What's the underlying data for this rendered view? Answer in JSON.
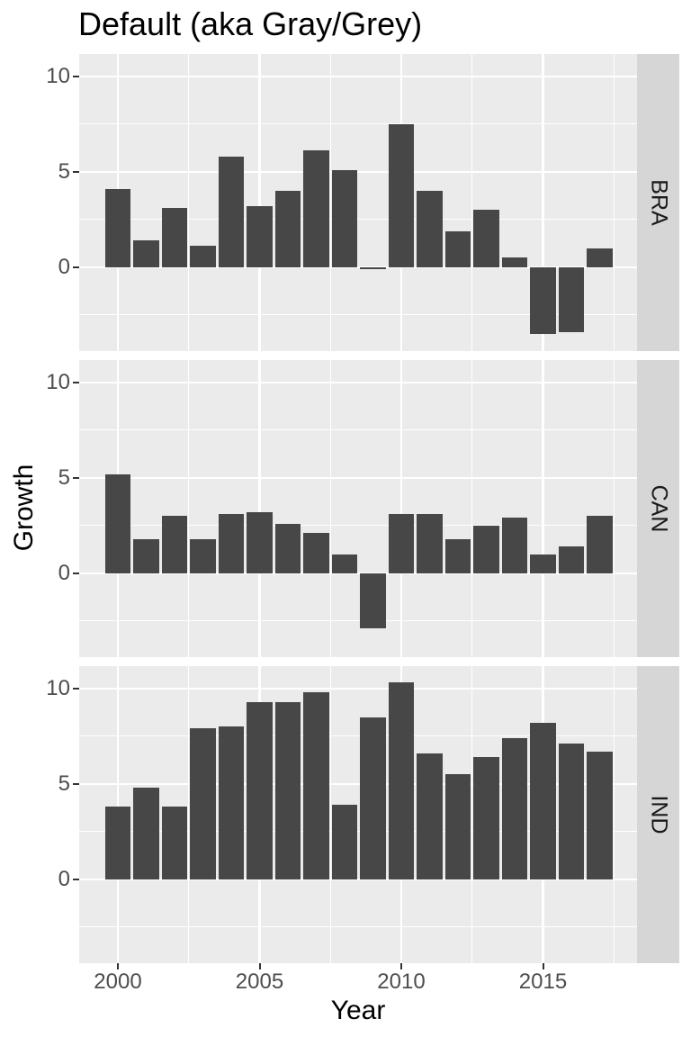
{
  "title": "Default (aka Gray/Grey)",
  "chart_data": {
    "type": "bar",
    "title": "Default (aka Gray/Grey)",
    "xlabel": "Year",
    "ylabel": "Growth",
    "facet_layout": "rows",
    "legend": "none",
    "grid": true,
    "categories": [
      2000,
      2001,
      2002,
      2003,
      2004,
      2005,
      2006,
      2007,
      2008,
      2009,
      2010,
      2011,
      2012,
      2013,
      2014,
      2015,
      2016,
      2017
    ],
    "series": [
      {
        "name": "BRA",
        "values": [
          4.1,
          1.4,
          3.1,
          1.1,
          5.8,
          3.2,
          4.0,
          6.1,
          5.1,
          -0.1,
          7.5,
          4.0,
          1.9,
          3.0,
          0.5,
          -3.5,
          -3.4,
          1.0
        ]
      },
      {
        "name": "CAN",
        "values": [
          5.2,
          1.8,
          3.0,
          1.8,
          3.1,
          3.2,
          2.6,
          2.1,
          1.0,
          -2.9,
          3.1,
          3.1,
          1.8,
          2.5,
          2.9,
          1.0,
          1.4,
          3.0
        ]
      },
      {
        "name": "IND",
        "values": [
          3.8,
          4.8,
          3.8,
          7.9,
          8.0,
          9.3,
          9.3,
          9.8,
          3.9,
          8.5,
          10.3,
          6.6,
          5.5,
          6.4,
          7.4,
          8.2,
          7.1,
          6.7
        ]
      }
    ],
    "x_ticks": [
      2000,
      2005,
      2010,
      2015
    ],
    "x_minor_gridlines": [
      2002.5,
      2007.5,
      2012.5,
      2017.5
    ],
    "y_ticks": [
      0,
      5,
      10
    ],
    "y_minor_gridlines": [
      -2.5,
      2.5,
      7.5
    ],
    "ylim": [
      -4.4,
      11.2
    ],
    "xlim": [
      1998.6,
      2018.3
    ],
    "bar_rel_width": 0.9,
    "colors": {
      "bar_fill": "#474747",
      "panel_background": "#ebebeb",
      "strip_background": "#d6d6d6",
      "gridline": "#ffffff",
      "tick_text": "#4d4d4d",
      "strip_text": "#1a1a1a",
      "title_text": "#000000",
      "axis_title_text": "#000000",
      "tick_mark": "#333333",
      "page_background": "#ffffff"
    }
  }
}
